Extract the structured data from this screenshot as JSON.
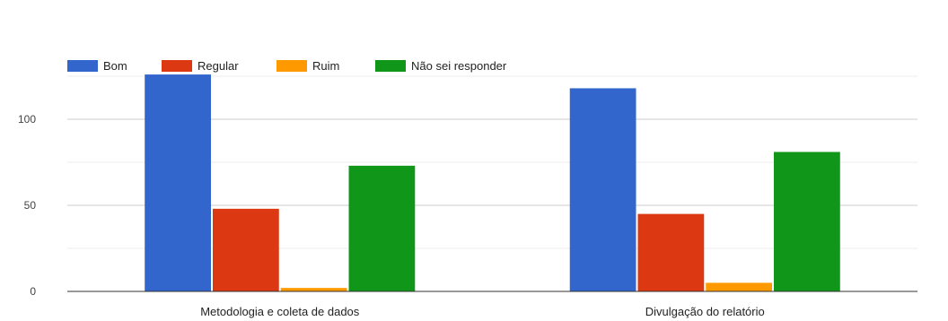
{
  "chart_data": {
    "type": "bar",
    "categories": [
      "Metodologia e coleta de dados",
      "Divulgação do relatório"
    ],
    "series": [
      {
        "name": "Bom",
        "color": "#3366cc",
        "values": [
          126,
          118
        ]
      },
      {
        "name": "Regular",
        "color": "#dc3912",
        "values": [
          48,
          45
        ]
      },
      {
        "name": "Ruim",
        "color": "#ff9900",
        "values": [
          2,
          5
        ]
      },
      {
        "name": "Não sei responder",
        "color": "#109618",
        "values": [
          73,
          81
        ]
      }
    ],
    "yticks": [
      0,
      50,
      100
    ],
    "ylim": [
      0,
      125
    ],
    "grid": true,
    "legend_position": "top-left",
    "title": "",
    "xlabel": "",
    "ylabel": ""
  }
}
